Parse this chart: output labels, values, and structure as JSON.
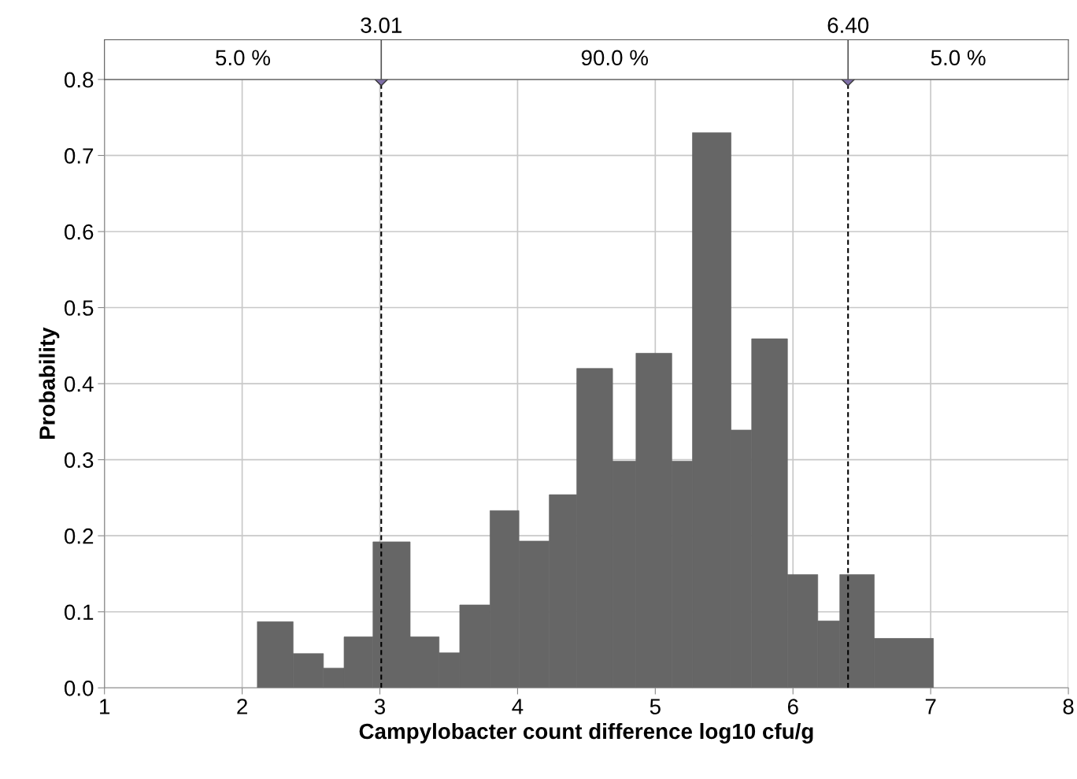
{
  "chart_data": {
    "type": "histogram",
    "xlabel": "Campylobacter count difference log10 cfu/g",
    "ylabel": "Probability",
    "bins": [
      2.11,
      2.37,
      2.59,
      2.74,
      2.95,
      3.22,
      3.43,
      3.58,
      3.8,
      4.01,
      4.23,
      4.43,
      4.69,
      4.86,
      5.12,
      5.27,
      5.55,
      5.7,
      5.96,
      6.18,
      6.34,
      6.59,
      7.02
    ],
    "values": [
      0.087,
      0.045,
      0.026,
      0.067,
      0.192,
      0.067,
      0.046,
      0.109,
      0.233,
      0.193,
      0.254,
      0.42,
      0.298,
      0.44,
      0.298,
      0.73,
      0.339,
      0.459,
      0.149,
      0.088,
      0.149,
      0.065
    ],
    "color": "#666666",
    "xlim": [
      1,
      8
    ],
    "xticks": [
      1,
      2,
      3,
      4,
      5,
      6,
      7,
      8
    ],
    "ylim": [
      0,
      0.8
    ],
    "yticks": [
      {
        "value": 0,
        "label": "0.0"
      },
      0.1,
      0.2,
      0.3,
      0.4,
      0.5,
      0.6,
      0.7,
      0.8
    ],
    "grid": true,
    "ref_lines": [
      {
        "axis": "x",
        "value": 3.01,
        "label": "3.01",
        "color": "#000000",
        "line_style": "dashed"
      },
      {
        "axis": "x",
        "value": 6.4,
        "label": "6.40",
        "color": "#000000",
        "line_style": "dashed"
      }
    ],
    "annotations": [
      "5.0 %",
      "90.0 %",
      "5.0 %"
    ]
  }
}
